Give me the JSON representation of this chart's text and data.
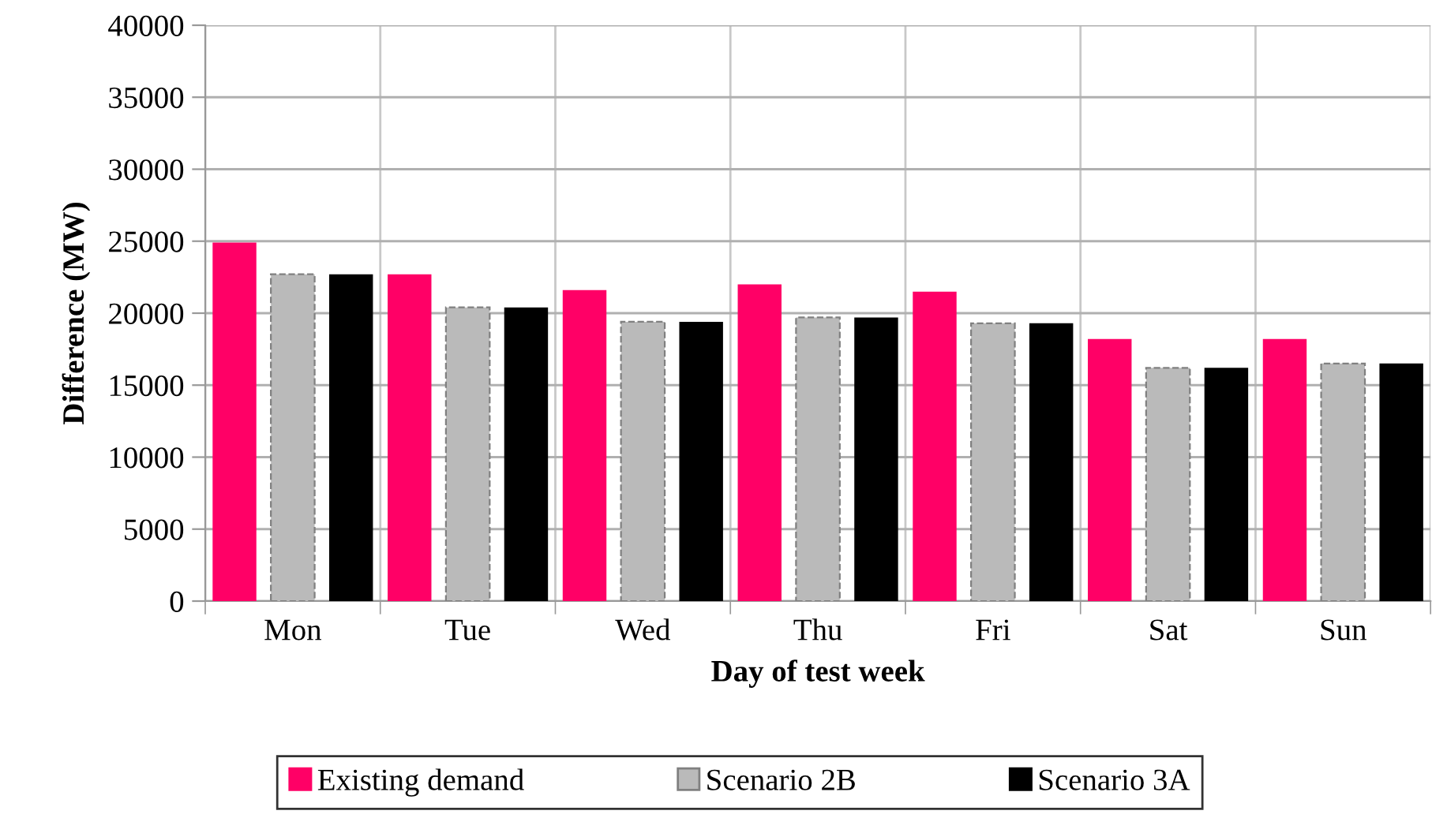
{
  "chart_data": {
    "type": "bar",
    "xlabel": "Day of test week",
    "ylabel": "Difference (MW)",
    "categories": [
      "Mon",
      "Tue",
      "Wed",
      "Thu",
      "Fri",
      "Sat",
      "Sun"
    ],
    "series": [
      {
        "name": "Existing demand",
        "color": "#ff0066",
        "values": [
          24900,
          22700,
          21600,
          22000,
          21500,
          18200,
          18200
        ]
      },
      {
        "name": "Scenario 2B",
        "color": "#bababa",
        "values": [
          22700,
          20400,
          19400,
          19700,
          19300,
          16200,
          16500
        ]
      },
      {
        "name": "Scenario 3A",
        "color": "#000000",
        "values": [
          22700,
          20400,
          19400,
          19700,
          19300,
          16200,
          16500
        ]
      }
    ],
    "ylim": [
      0,
      40000
    ],
    "yticks": [
      0,
      5000,
      10000,
      15000,
      20000,
      25000,
      30000,
      35000,
      40000
    ],
    "grid": true,
    "legend": "bottom"
  }
}
